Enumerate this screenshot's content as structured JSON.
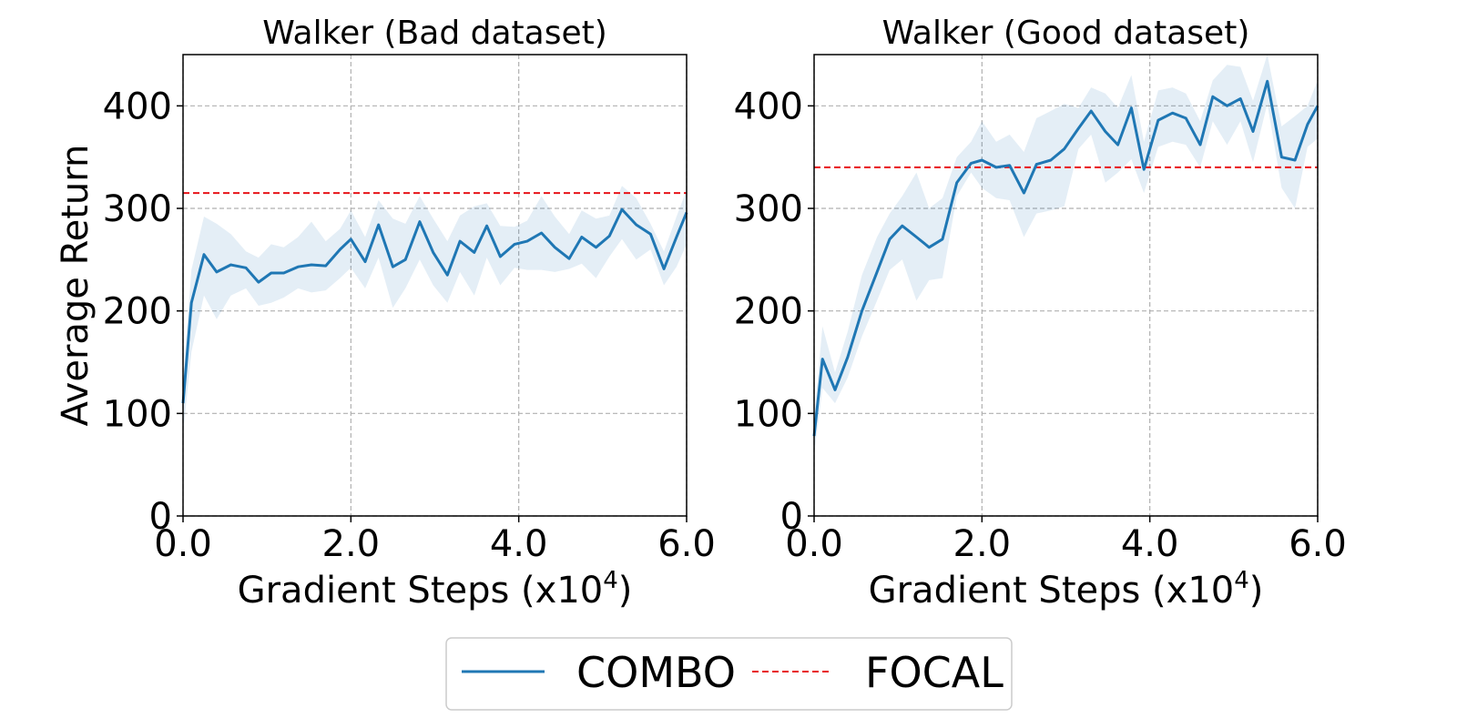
{
  "colors": {
    "combo": "#1f77b4",
    "combo_band": "#1f77b4",
    "focal": "#e8141a",
    "grid": "#b0b0b0",
    "frame": "#000000"
  },
  "legend": {
    "placement": "bottom-center",
    "items": [
      {
        "label": "COMBO",
        "style": "solid",
        "color": "#1f77b4"
      },
      {
        "label": "FOCAL",
        "style": "dashed",
        "color": "#e8141a"
      }
    ]
  },
  "chart_data": [
    {
      "type": "line",
      "title": "Walker (Bad dataset)",
      "xlabel": "Gradient Steps (x10",
      "xlabel_exp": "4",
      "xlabel_close": ")",
      "ylabel": "Average Return",
      "xlim": [
        0,
        6
      ],
      "ylim": [
        0,
        450
      ],
      "xticks": [
        0,
        2,
        4,
        6
      ],
      "xtick_labels": [
        "0.0",
        "2.0",
        "4.0",
        "6.0"
      ],
      "yticks": [
        0,
        100,
        200,
        300,
        400
      ],
      "ytick_labels": [
        "0",
        "100",
        "200",
        "300",
        "400"
      ],
      "grid": true,
      "series": [
        {
          "name": "COMBO",
          "x": [
            0,
            0.1,
            0.25,
            0.4,
            0.57,
            0.75,
            0.9,
            1.05,
            1.2,
            1.37,
            1.53,
            1.7,
            1.87,
            2.0,
            2.17,
            2.33,
            2.5,
            2.65,
            2.82,
            2.98,
            3.15,
            3.3,
            3.47,
            3.62,
            3.78,
            3.95,
            4.1,
            4.27,
            4.43,
            4.6,
            4.75,
            4.92,
            5.08,
            5.23,
            5.4,
            5.57,
            5.73,
            5.88,
            6.0
          ],
          "y": [
            110,
            208,
            255,
            238,
            245,
            242,
            228,
            237,
            237,
            243,
            245,
            244,
            260,
            270,
            248,
            284,
            243,
            250,
            287,
            257,
            235,
            268,
            257,
            283,
            253,
            265,
            268,
            276,
            262,
            251,
            272,
            262,
            273,
            299,
            284,
            275,
            241,
            272,
            296
          ],
          "lower": [
            80,
            160,
            215,
            192,
            215,
            222,
            205,
            208,
            213,
            222,
            218,
            220,
            232,
            242,
            222,
            252,
            203,
            222,
            250,
            225,
            208,
            238,
            215,
            252,
            225,
            242,
            240,
            240,
            238,
            241,
            246,
            232,
            253,
            270,
            250,
            260,
            225,
            243,
            265
          ],
          "upper": [
            130,
            240,
            292,
            285,
            275,
            258,
            252,
            265,
            262,
            272,
            287,
            268,
            280,
            298,
            272,
            308,
            290,
            285,
            312,
            290,
            268,
            293,
            302,
            305,
            283,
            282,
            288,
            312,
            292,
            275,
            298,
            290,
            293,
            322,
            310,
            285,
            258,
            292,
            318
          ]
        },
        {
          "name": "FOCAL",
          "baseline": 315
        }
      ]
    },
    {
      "type": "line",
      "title": "Walker (Good dataset)",
      "xlabel": "Gradient Steps (x10",
      "xlabel_exp": "4",
      "xlabel_close": ")",
      "ylabel": "",
      "xlim": [
        0,
        6
      ],
      "ylim": [
        0,
        450
      ],
      "xticks": [
        0,
        2,
        4,
        6
      ],
      "xtick_labels": [
        "0.0",
        "2.0",
        "4.0",
        "6.0"
      ],
      "yticks": [
        0,
        100,
        200,
        300,
        400
      ],
      "ytick_labels": [
        "0",
        "100",
        "200",
        "300",
        "400"
      ],
      "grid": true,
      "series": [
        {
          "name": "COMBO",
          "x": [
            0,
            0.1,
            0.25,
            0.4,
            0.57,
            0.75,
            0.9,
            1.05,
            1.22,
            1.37,
            1.53,
            1.7,
            1.87,
            2.0,
            2.17,
            2.33,
            2.5,
            2.65,
            2.82,
            2.98,
            3.15,
            3.3,
            3.47,
            3.62,
            3.78,
            3.93,
            4.1,
            4.27,
            4.43,
            4.6,
            4.75,
            4.92,
            5.08,
            5.23,
            5.4,
            5.57,
            5.73,
            5.88,
            6.0
          ],
          "y": [
            78,
            153,
            123,
            155,
            200,
            238,
            270,
            283,
            272,
            262,
            270,
            325,
            344,
            347,
            340,
            342,
            315,
            343,
            347,
            358,
            378,
            395,
            375,
            362,
            398,
            338,
            386,
            393,
            388,
            362,
            409,
            400,
            407,
            375,
            424,
            350,
            347,
            382,
            400
          ],
          "lower": [
            60,
            125,
            110,
            135,
            175,
            210,
            240,
            250,
            210,
            230,
            232,
            312,
            335,
            320,
            310,
            308,
            272,
            295,
            298,
            302,
            358,
            372,
            325,
            335,
            348,
            315,
            360,
            365,
            362,
            340,
            385,
            362,
            385,
            345,
            402,
            320,
            300,
            360,
            368
          ],
          "upper": [
            95,
            185,
            140,
            180,
            235,
            272,
            295,
            312,
            335,
            300,
            310,
            350,
            365,
            385,
            365,
            372,
            355,
            388,
            395,
            402,
            398,
            418,
            412,
            398,
            430,
            365,
            415,
            418,
            412,
            385,
            425,
            440,
            438,
            405,
            450,
            380,
            390,
            400,
            425
          ]
        },
        {
          "name": "FOCAL",
          "baseline": 340
        }
      ]
    }
  ]
}
